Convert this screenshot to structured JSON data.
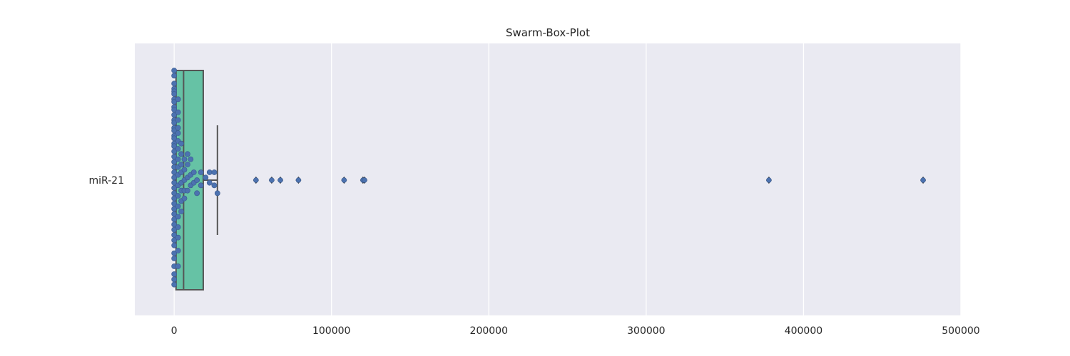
{
  "chart_data": {
    "type": "box",
    "title": "Swarm-Box-Plot",
    "xlabel": "",
    "ylabel": "",
    "xlim": [
      -25000,
      500000
    ],
    "x_ticks": [
      0,
      100000,
      200000,
      300000,
      400000,
      500000
    ],
    "x_tick_labels": [
      "0",
      "100000",
      "200000",
      "300000",
      "400000",
      "500000"
    ],
    "categories": [
      "miR-21"
    ],
    "grid": true,
    "colors": {
      "plot_background": "#eaeaf2",
      "grid": "#ffffff",
      "box_fill": "#66c2a5",
      "box_edge": "#555555",
      "point": "#4c72b0",
      "point_edge": "#3a5a8c"
    },
    "box": {
      "q1": 1200,
      "median": 6000,
      "q3": 18500,
      "whisker_low": 0,
      "whisker_high": 27500
    },
    "outliers": [
      52000,
      62000,
      67500,
      79000,
      108000,
      120000,
      121000,
      378000,
      476000
    ],
    "swarm_points": [
      [
        0,
        0.42
      ],
      [
        0,
        0.4
      ],
      [
        0,
        0.37
      ],
      [
        0,
        0.35
      ],
      [
        0,
        0.34
      ],
      [
        0,
        0.33
      ],
      [
        0,
        0.31
      ],
      [
        0,
        0.3
      ],
      [
        0,
        0.28
      ],
      [
        0,
        0.27
      ],
      [
        0,
        0.25
      ],
      [
        0,
        0.23
      ],
      [
        0,
        0.22
      ],
      [
        0,
        0.2
      ],
      [
        0,
        0.19
      ],
      [
        0,
        0.17
      ],
      [
        0,
        0.16
      ],
      [
        0,
        0.14
      ],
      [
        0,
        0.13
      ],
      [
        0,
        0.11
      ],
      [
        0,
        0.09
      ],
      [
        0,
        0.07
      ],
      [
        0,
        0.05
      ],
      [
        0,
        0.03
      ],
      [
        0,
        0.01
      ],
      [
        0,
        -0.01
      ],
      [
        0,
        -0.03
      ],
      [
        0,
        -0.05
      ],
      [
        0,
        -0.07
      ],
      [
        0,
        -0.09
      ],
      [
        0,
        -0.11
      ],
      [
        0,
        -0.13
      ],
      [
        0,
        -0.15
      ],
      [
        0,
        -0.17
      ],
      [
        0,
        -0.19
      ],
      [
        0,
        -0.21
      ],
      [
        0,
        -0.23
      ],
      [
        0,
        -0.25
      ],
      [
        0,
        -0.28
      ],
      [
        0,
        -0.3
      ],
      [
        0,
        -0.33
      ],
      [
        0,
        -0.36
      ],
      [
        0,
        -0.38
      ],
      [
        0,
        -0.4
      ],
      [
        2500,
        0.31
      ],
      [
        2500,
        0.26
      ],
      [
        2500,
        0.23
      ],
      [
        2500,
        0.2
      ],
      [
        2500,
        0.18
      ],
      [
        2500,
        0.15
      ],
      [
        2500,
        0.12
      ],
      [
        2500,
        0.08
      ],
      [
        2500,
        0.05
      ],
      [
        2500,
        0.02
      ],
      [
        2500,
        -0.02
      ],
      [
        2500,
        -0.06
      ],
      [
        2500,
        -0.1
      ],
      [
        2500,
        -0.14
      ],
      [
        2500,
        -0.18
      ],
      [
        2500,
        -0.22
      ],
      [
        2500,
        -0.27
      ],
      [
        2500,
        -0.33
      ],
      [
        4500,
        0.14
      ],
      [
        4500,
        0.1
      ],
      [
        4500,
        0.06
      ],
      [
        4500,
        0.03
      ],
      [
        4500,
        -0.01
      ],
      [
        4500,
        -0.04
      ],
      [
        4500,
        -0.08
      ],
      [
        4500,
        -0.12
      ],
      [
        6500,
        0.08
      ],
      [
        6500,
        0.04
      ],
      [
        6500,
        0.0
      ],
      [
        6500,
        -0.04
      ],
      [
        6500,
        -0.07
      ],
      [
        8500,
        0.1
      ],
      [
        8500,
        0.06
      ],
      [
        8500,
        0.01
      ],
      [
        8500,
        -0.04
      ],
      [
        10500,
        0.08
      ],
      [
        10500,
        0.02
      ],
      [
        10500,
        -0.02
      ],
      [
        12500,
        0.03
      ],
      [
        12500,
        -0.01
      ],
      [
        14500,
        0.0
      ],
      [
        14500,
        -0.05
      ],
      [
        17000,
        0.03
      ],
      [
        17000,
        -0.02
      ],
      [
        20000,
        0.01
      ],
      [
        22500,
        0.03
      ],
      [
        22500,
        -0.01
      ],
      [
        25500,
        0.03
      ],
      [
        25500,
        -0.02
      ],
      [
        27500,
        -0.05
      ]
    ]
  }
}
